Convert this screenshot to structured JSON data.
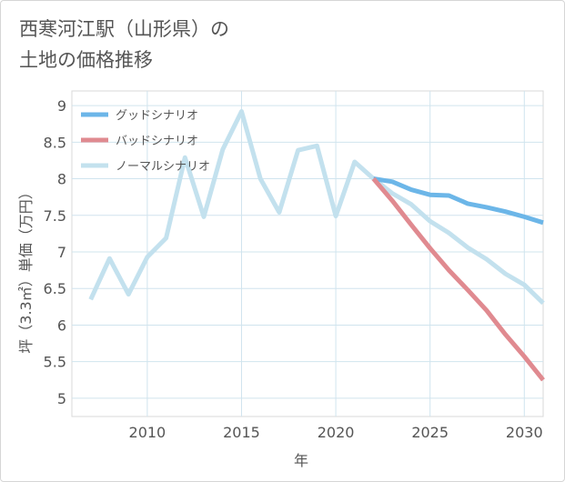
{
  "title_line1": "西寒河江駅（山形県）の",
  "title_line2": "土地の価格推移",
  "chart_data": {
    "type": "line",
    "title": "西寒河江駅（山形県）の土地の価格推移",
    "xlabel": "年",
    "ylabel": "坪（3.3㎡）単価（万円）",
    "xlim": [
      2006,
      2031
    ],
    "ylim": [
      4.75,
      9.2
    ],
    "xticks": [
      2010,
      2015,
      2020,
      2025,
      2030
    ],
    "yticks": [
      5,
      5.5,
      6,
      6.5,
      7,
      7.5,
      8,
      8.5,
      9
    ],
    "legend_position": "top-left",
    "series": [
      {
        "name": "グッドシナリオ",
        "color": "#6cb6e8",
        "x": [
          2022,
          2023,
          2024,
          2025,
          2026,
          2027,
          2028,
          2029,
          2030,
          2031
        ],
        "values": [
          8.0,
          7.96,
          7.85,
          7.78,
          7.77,
          7.66,
          7.61,
          7.55,
          7.48,
          7.4
        ]
      },
      {
        "name": "バッドシナリオ",
        "color": "#e08a90",
        "x": [
          2022,
          2023,
          2024,
          2025,
          2026,
          2027,
          2028,
          2029,
          2030,
          2031
        ],
        "values": [
          8.0,
          7.7,
          7.37,
          7.05,
          6.75,
          6.48,
          6.2,
          5.87,
          5.57,
          5.25
        ]
      },
      {
        "name": "ノーマルシナリオ",
        "color": "#c3e1ee",
        "x": [
          2007,
          2008,
          2009,
          2010,
          2011,
          2012,
          2013,
          2014,
          2015,
          2016,
          2017,
          2018,
          2019,
          2020,
          2021,
          2022,
          2023,
          2024,
          2025,
          2026,
          2027,
          2028,
          2029,
          2030,
          2031
        ],
        "values": [
          6.35,
          6.91,
          6.42,
          6.93,
          7.19,
          8.29,
          7.48,
          8.4,
          8.92,
          8.0,
          7.54,
          8.39,
          8.45,
          7.49,
          8.23,
          8.0,
          7.8,
          7.65,
          7.42,
          7.26,
          7.06,
          6.9,
          6.7,
          6.55,
          6.3
        ]
      }
    ]
  }
}
